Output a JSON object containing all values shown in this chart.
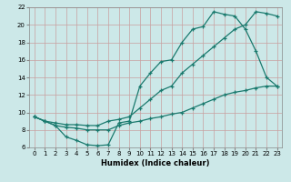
{
  "xlabel": "Humidex (Indice chaleur)",
  "xlim": [
    -0.5,
    23.5
  ],
  "ylim": [
    6,
    22
  ],
  "xticks": [
    0,
    1,
    2,
    3,
    4,
    5,
    6,
    7,
    8,
    9,
    10,
    11,
    12,
    13,
    14,
    15,
    16,
    17,
    18,
    19,
    20,
    21,
    22,
    23
  ],
  "yticks": [
    6,
    8,
    10,
    12,
    14,
    16,
    18,
    20,
    22
  ],
  "bg_color": "#cce8e8",
  "line_color": "#1a7a6e",
  "line1_x": [
    0,
    1,
    2,
    3,
    4,
    5,
    6,
    7,
    8,
    9,
    10,
    11,
    12,
    13,
    14,
    15,
    16,
    17,
    18,
    19,
    20,
    21,
    22,
    23
  ],
  "line1_y": [
    9.5,
    9.0,
    8.5,
    7.2,
    6.8,
    6.3,
    6.2,
    6.3,
    8.8,
    9.0,
    13.0,
    14.5,
    15.8,
    16.0,
    18.0,
    19.5,
    19.8,
    21.5,
    21.2,
    21.0,
    19.5,
    17.0,
    14.0,
    13.0
  ],
  "line2_x": [
    0,
    1,
    2,
    3,
    4,
    5,
    6,
    7,
    8,
    9,
    10,
    11,
    12,
    13,
    14,
    15,
    16,
    17,
    18,
    19,
    20,
    21,
    22,
    23
  ],
  "line2_y": [
    9.5,
    9.0,
    8.8,
    8.6,
    8.6,
    8.5,
    8.5,
    9.0,
    9.2,
    9.5,
    10.5,
    11.5,
    12.5,
    13.0,
    14.5,
    15.5,
    16.5,
    17.5,
    18.5,
    19.5,
    20.0,
    21.5,
    21.3,
    21.0
  ],
  "line3_x": [
    0,
    1,
    2,
    3,
    4,
    5,
    6,
    7,
    8,
    9,
    10,
    11,
    12,
    13,
    14,
    15,
    16,
    17,
    18,
    19,
    20,
    21,
    22,
    23
  ],
  "line3_y": [
    9.5,
    9.0,
    8.5,
    8.3,
    8.2,
    8.0,
    8.0,
    8.0,
    8.5,
    8.8,
    9.0,
    9.3,
    9.5,
    9.8,
    10.0,
    10.5,
    11.0,
    11.5,
    12.0,
    12.3,
    12.5,
    12.8,
    13.0,
    13.0
  ]
}
